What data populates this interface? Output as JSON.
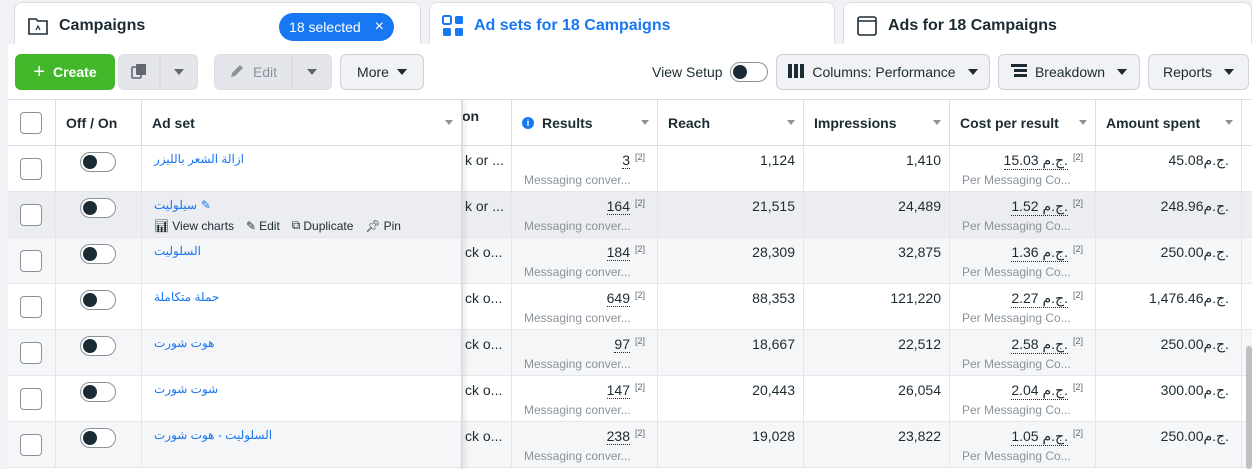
{
  "tabs": {
    "campaigns": {
      "label": "Campaigns",
      "badge": "18 selected",
      "badge_close": "×"
    },
    "adsets": {
      "label": "Ad sets for 18 Campaigns"
    },
    "ads": {
      "label": "Ads for 18 Campaigns"
    }
  },
  "toolbar": {
    "create": "Create",
    "edit": "Edit",
    "more": "More",
    "view_setup": "View Setup",
    "columns": "Columns: Performance",
    "breakdown": "Breakdown",
    "reports": "Reports"
  },
  "table": {
    "headers": {
      "off_on": "Off / On",
      "ad_set": "Ad set",
      "truncated": "on",
      "results": "Results",
      "reach": "Reach",
      "impressions": "Impressions",
      "cost": "Cost per result",
      "amount": "Amount spent"
    },
    "hover_actions": {
      "view_charts": "View charts",
      "edit": "Edit",
      "duplicate": "Duplicate",
      "pin": "Pin"
    },
    "rows": [
      {
        "name": "ازالة الشعر بالليزر",
        "trunc": "k or ...",
        "results": "3",
        "results_note": "[2]",
        "results_sub": "Messaging conver...",
        "reach": "1,124",
        "impressions": "1,410",
        "cost": "15.03 ج.م.",
        "cost_note": "[2]",
        "cost_sub": "Per Messaging Co...",
        "amount": "45.08ج.م."
      },
      {
        "name": "سيلوليت",
        "trunc": "k or ...",
        "results": "164",
        "results_note": "[2]",
        "results_sub": "Messaging conver...",
        "reach": "21,515",
        "impressions": "24,489",
        "cost": "1.52 ج.م.",
        "cost_note": "[2]",
        "cost_sub": "Per Messaging Co...",
        "amount": "248.96ج.م."
      },
      {
        "name": "السلوليت",
        "trunc": "ck o...",
        "results": "184",
        "results_note": "[2]",
        "results_sub": "Messaging conver...",
        "reach": "28,309",
        "impressions": "32,875",
        "cost": "1.36 ج.م.",
        "cost_note": "[2]",
        "cost_sub": "Per Messaging Co...",
        "amount": "250.00ج.م."
      },
      {
        "name": "حملة متكاملة",
        "trunc": "ck o...",
        "results": "649",
        "results_note": "[2]",
        "results_sub": "Messaging conver...",
        "reach": "88,353",
        "impressions": "121,220",
        "cost": "2.27 ج.م.",
        "cost_note": "[2]",
        "cost_sub": "Per Messaging Co...",
        "amount": "1,476.46ج.م."
      },
      {
        "name": "هوت شورت",
        "trunc": "ck o...",
        "results": "97",
        "results_note": "[2]",
        "results_sub": "Messaging conver...",
        "reach": "18,667",
        "impressions": "22,512",
        "cost": "2.58 ج.م.",
        "cost_note": "[2]",
        "cost_sub": "Per Messaging Co...",
        "amount": "250.00ج.م."
      },
      {
        "name": "شوت شورت",
        "trunc": "ck o...",
        "results": "147",
        "results_note": "[2]",
        "results_sub": "Messaging conver...",
        "reach": "20,443",
        "impressions": "26,054",
        "cost": "2.04 ج.م.",
        "cost_note": "[2]",
        "cost_sub": "Per Messaging Co...",
        "amount": "300.00ج.م."
      },
      {
        "name": "السلوليت - هوت شورت",
        "trunc": "ck o...",
        "results": "238",
        "results_note": "[2]",
        "results_sub": "Messaging conver...",
        "reach": "19,028",
        "impressions": "23,822",
        "cost": "1.05 ج.م.",
        "cost_note": "[2]",
        "cost_sub": "Per Messaging Co...",
        "amount": "250.00ج.م."
      }
    ]
  },
  "colors": {
    "accent": "#1877f2",
    "create": "#42b72a"
  }
}
